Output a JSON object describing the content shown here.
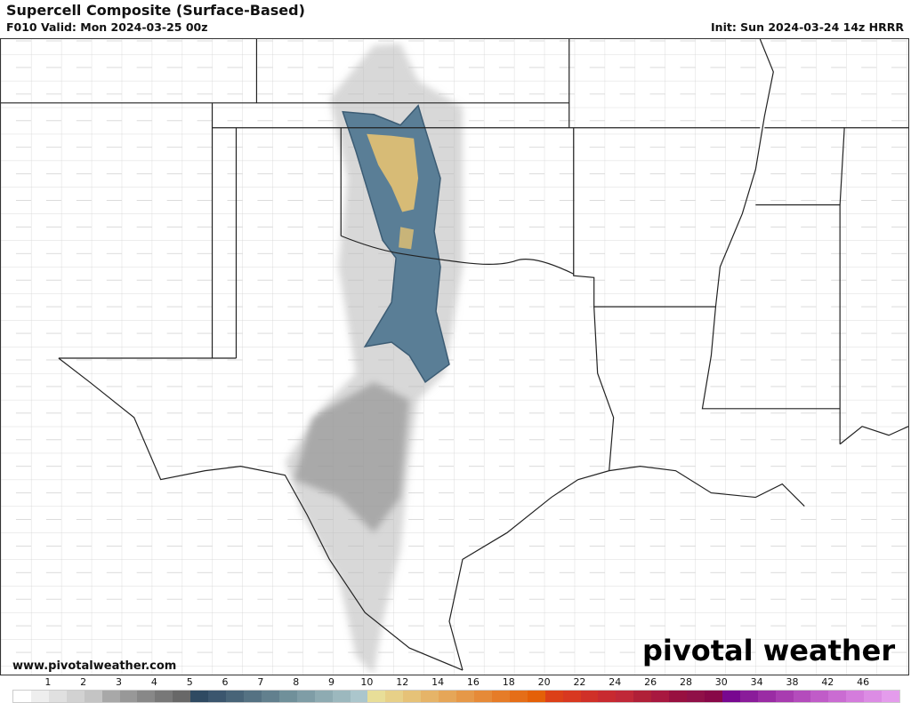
{
  "header": {
    "title": "Supercell Composite (Surface-Based)",
    "valid": "F010 Valid: Mon 2024-03-25 00z",
    "init": "Init: Sun 2024-03-24 14z HRRR"
  },
  "footer": {
    "url": "www.pivotalweather.com",
    "logo": "pivotal weather"
  },
  "colorbar": {
    "tick_labels": [
      "1",
      "2",
      "3",
      "4",
      "5",
      "6",
      "7",
      "8",
      "9",
      "10",
      "12",
      "14",
      "16",
      "18",
      "20",
      "22",
      "24",
      "26",
      "28",
      "30",
      "34",
      "38",
      "42",
      "46"
    ],
    "tick_values": [
      1,
      2,
      3,
      4,
      5,
      6,
      7,
      8,
      9,
      10,
      12,
      14,
      16,
      18,
      20,
      22,
      24,
      26,
      28,
      30,
      34,
      38,
      42,
      46
    ],
    "colors": [
      "#ffffff",
      "#eeeeee",
      "#e0e0e0",
      "#d2d2d2",
      "#c4c4c4",
      "#a8a8a8",
      "#989898",
      "#888888",
      "#787878",
      "#686868",
      "#2f4a62",
      "#3b566e",
      "#486478",
      "#557283",
      "#62808e",
      "#70909a",
      "#7f9da6",
      "#8eabb2",
      "#9cb8be",
      "#abc6cc",
      "#e8de98",
      "#e7d088",
      "#e6c278",
      "#e6b468",
      "#e6a658",
      "#e69848",
      "#e68a38",
      "#e67c28",
      "#e56e18",
      "#e46008",
      "#dc4018",
      "#d83820",
      "#d03028",
      "#c82a30",
      "#c02838",
      "#b02038",
      "#a81840",
      "#981040",
      "#901048",
      "#880848",
      "#780890",
      "#8a1c9a",
      "#9a2ca4",
      "#a83cb0",
      "#b44cbc",
      "#c05cc8",
      "#ca6cd2",
      "#d47cdc",
      "#dc8ce4",
      "#e49cec"
    ]
  }
}
